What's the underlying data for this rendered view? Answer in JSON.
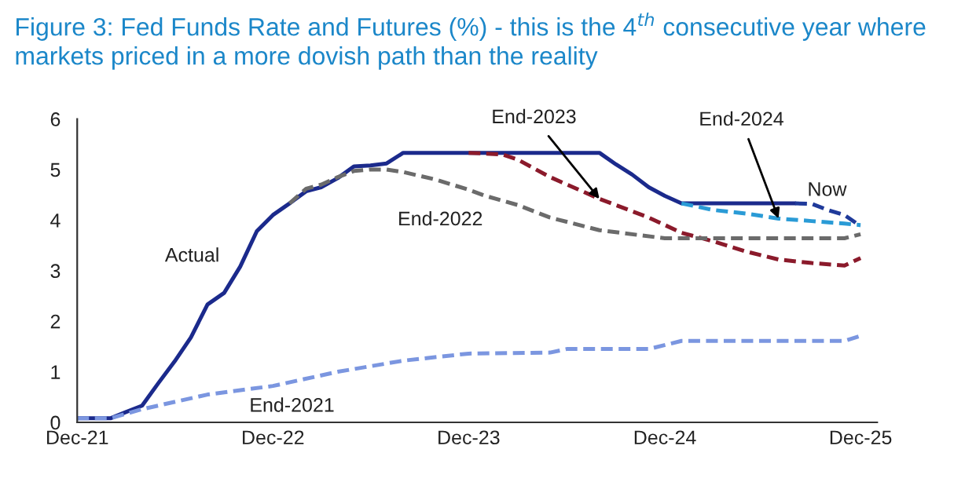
{
  "chart_data": {
    "type": "line",
    "title": "Figure 3: Fed Funds Rate and Futures (%) - this is the 4$^{th}$ consecutive year where markets priced in a more dovish path than the reality",
    "xlim": [
      "2021-12",
      "2026-01"
    ],
    "xticks": [
      {
        "value": "2021-12",
        "label": "Dec-21"
      },
      {
        "value": "2022-12",
        "label": "Dec-22"
      },
      {
        "value": "2023-12",
        "label": "Dec-23"
      },
      {
        "value": "2024-12",
        "label": "Dec-24"
      },
      {
        "value": "2025-12",
        "label": "Dec-25"
      }
    ],
    "ylim": [
      0,
      6
    ],
    "yticks": [
      0,
      1,
      2,
      3,
      4,
      5,
      6
    ],
    "grid": false,
    "legend": false,
    "series": [
      {
        "name": "Actual",
        "color": "#1b2a8c",
        "line_style": "solid",
        "x": [
          "2021-12",
          "2022-01",
          "2022-02",
          "2022-03",
          "2022-04",
          "2022-05",
          "2022-06",
          "2022-07",
          "2022-08",
          "2022-09",
          "2022-10",
          "2022-11",
          "2022-12",
          "2023-01",
          "2023-02",
          "2023-03",
          "2023-04",
          "2023-05",
          "2023-06",
          "2023-07",
          "2023-08",
          "2024-08",
          "2024-09",
          "2024-10",
          "2024-11",
          "2024-12",
          "2025-01",
          "2025-08"
        ],
        "values": [
          0.08,
          0.08,
          0.08,
          0.2,
          0.33,
          0.77,
          1.21,
          1.68,
          2.33,
          2.56,
          3.08,
          3.78,
          4.1,
          4.33,
          4.57,
          4.65,
          4.83,
          5.06,
          5.08,
          5.12,
          5.33,
          5.33,
          5.1,
          4.9,
          4.65,
          4.48,
          4.33,
          4.33
        ]
      },
      {
        "name": "Now",
        "color": "#1f3a9a",
        "line_style": "dashed",
        "x": [
          "2025-08",
          "2025-09",
          "2025-10",
          "2025-11",
          "2025-12"
        ],
        "values": [
          4.33,
          4.32,
          4.2,
          4.1,
          3.88
        ]
      },
      {
        "name": "End-2024",
        "color": "#2a9bd6",
        "line_style": "dashed",
        "x": [
          "2025-01",
          "2025-03",
          "2025-05",
          "2025-07",
          "2025-09",
          "2025-11",
          "2025-12"
        ],
        "values": [
          4.33,
          4.2,
          4.13,
          4.03,
          3.98,
          3.93,
          3.9
        ]
      },
      {
        "name": "End-2023",
        "color": "#8b1a2b",
        "line_style": "dashed",
        "x": [
          "2023-12",
          "2024-02",
          "2024-03",
          "2024-05",
          "2024-08",
          "2024-11",
          "2025-01",
          "2025-03",
          "2025-05",
          "2025-07",
          "2025-09",
          "2025-11",
          "2025-12"
        ],
        "values": [
          5.33,
          5.3,
          5.2,
          4.85,
          4.42,
          4.05,
          3.75,
          3.58,
          3.38,
          3.22,
          3.15,
          3.1,
          3.25
        ]
      },
      {
        "name": "End-2022",
        "color": "#6b6b6b",
        "line_style": "dashed",
        "x": [
          "2023-01",
          "2023-02",
          "2023-03",
          "2023-04",
          "2023-05",
          "2023-06",
          "2023-07",
          "2023-08",
          "2023-10",
          "2023-12",
          "2024-01",
          "2024-03",
          "2024-05",
          "2024-08",
          "2024-12",
          "2025-11",
          "2025-12"
        ],
        "values": [
          4.33,
          4.62,
          4.7,
          4.85,
          4.97,
          5.0,
          5.0,
          4.95,
          4.8,
          4.6,
          4.48,
          4.3,
          4.05,
          3.8,
          3.64,
          3.64,
          3.72
        ]
      },
      {
        "name": "End-2021",
        "color": "#7b96e0",
        "line_style": "dashed",
        "x": [
          "2021-12",
          "2022-02",
          "2022-04",
          "2022-08",
          "2022-12",
          "2023-04",
          "2023-08",
          "2023-12",
          "2024-05",
          "2024-06",
          "2024-11",
          "2025-01",
          "2025-11",
          "2025-12"
        ],
        "values": [
          0.08,
          0.08,
          0.26,
          0.55,
          0.72,
          1.0,
          1.22,
          1.36,
          1.38,
          1.45,
          1.45,
          1.61,
          1.61,
          1.71
        ]
      }
    ]
  }
}
